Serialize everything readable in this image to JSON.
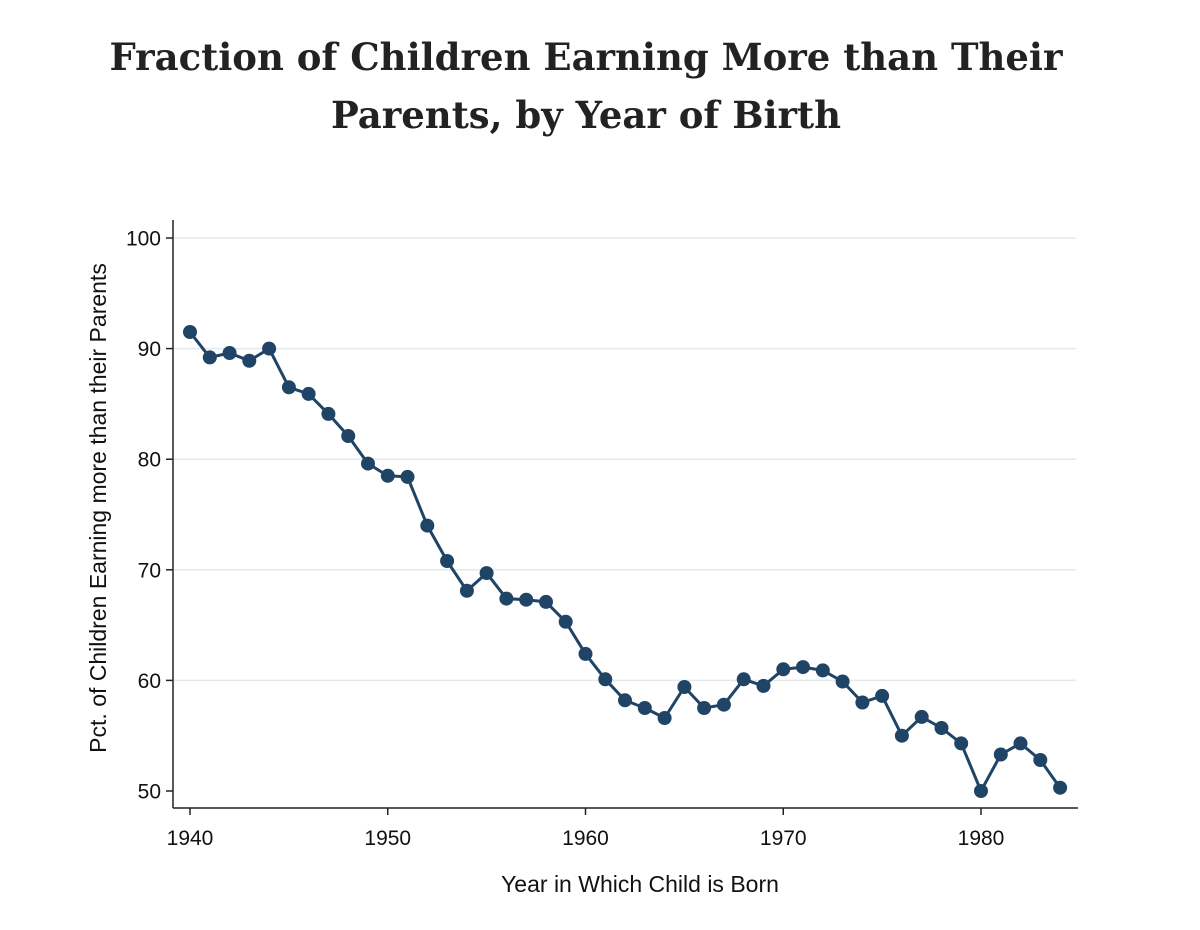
{
  "chart_data": {
    "type": "line",
    "title_lines": [
      "Fraction of Children Earning More than Their",
      "Parents, by Year of Birth"
    ],
    "xlabel": "Year in Which Child is Born",
    "ylabel": "Pct. of Children Earning more than their Parents",
    "xlim": [
      1940,
      1984
    ],
    "ylim": [
      50,
      100
    ],
    "xticks": [
      1940,
      1950,
      1960,
      1970,
      1980
    ],
    "yticks": [
      50,
      60,
      70,
      80,
      90,
      100
    ],
    "grid": true,
    "series": [
      {
        "color": "#1f4466",
        "marker": "circle",
        "x": [
          1940,
          1941,
          1942,
          1943,
          1944,
          1945,
          1946,
          1947,
          1948,
          1949,
          1950,
          1951,
          1952,
          1953,
          1954,
          1955,
          1956,
          1957,
          1958,
          1959,
          1960,
          1961,
          1962,
          1963,
          1964,
          1965,
          1966,
          1967,
          1968,
          1969,
          1970,
          1971,
          1972,
          1973,
          1974,
          1975,
          1976,
          1977,
          1978,
          1979,
          1980,
          1981,
          1982,
          1983,
          1984
        ],
        "y": [
          91.5,
          89.2,
          89.6,
          88.9,
          90.0,
          86.5,
          85.9,
          84.1,
          82.1,
          79.6,
          78.5,
          78.4,
          74.0,
          70.8,
          68.1,
          69.7,
          67.4,
          67.3,
          67.1,
          65.3,
          62.4,
          60.1,
          58.2,
          57.5,
          56.6,
          59.4,
          57.5,
          57.8,
          60.1,
          59.5,
          61.0,
          61.2,
          60.9,
          59.9,
          58.0,
          58.6,
          55.0,
          56.7,
          55.7,
          54.3,
          50.0,
          53.3,
          54.3,
          52.8,
          50.3
        ]
      }
    ]
  }
}
